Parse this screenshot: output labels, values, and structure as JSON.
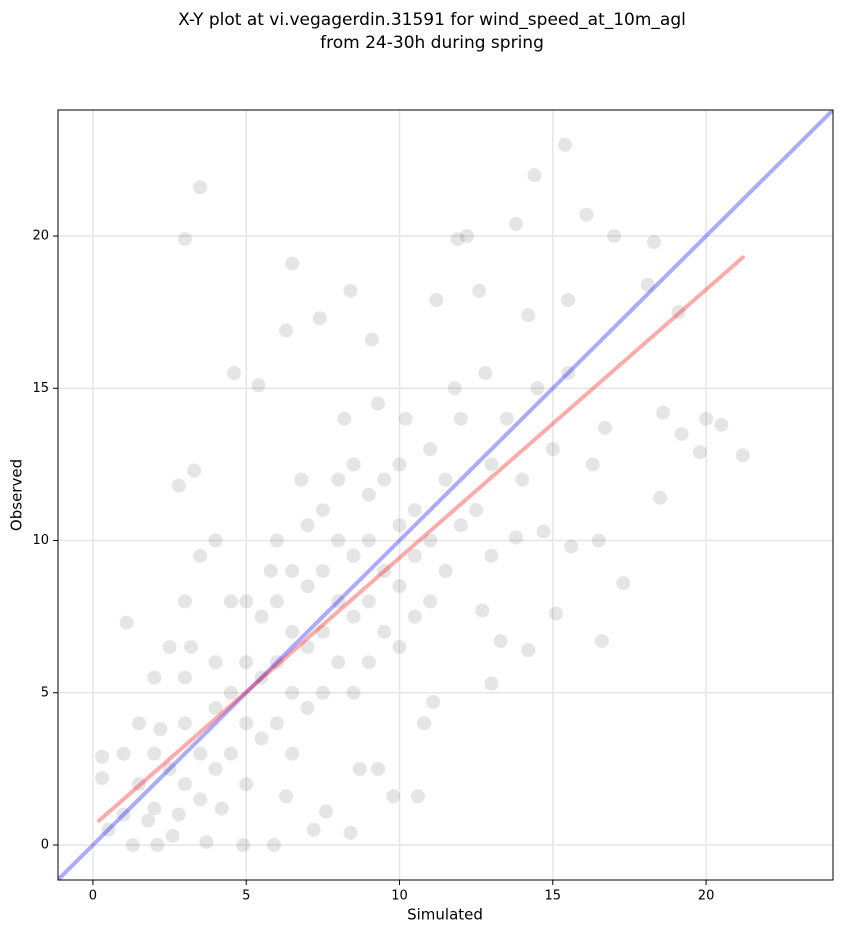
{
  "chart_data": {
    "type": "scatter",
    "title": [
      "X-Y plot at vi.vegagerdin.31591 for wind_speed_at_10m_agl",
      "from 24-30h during spring"
    ],
    "x_label": "Simulated",
    "y_label": "Observed",
    "xlim": [
      -1.14,
      24.14
    ],
    "ylim": [
      -1.15,
      24.14
    ],
    "xticks": [
      0,
      5,
      10,
      15,
      20
    ],
    "yticks": [
      0,
      5,
      10,
      15,
      20
    ],
    "grid": true,
    "color": "#000000",
    "alpha": 0.1,
    "x": [
      3.5,
      3.0,
      15.4,
      14.4,
      21.2,
      17.3,
      16.6,
      12.2,
      6.5,
      8.4,
      13.8,
      16.1,
      18.3,
      20.0,
      19.8,
      18.5,
      15.1,
      13.0,
      9.8,
      10.6,
      8.4,
      5.9,
      4.9,
      2.1,
      0.3,
      0.3,
      1.1,
      2.8,
      3.3,
      4.6,
      5.4,
      6.3,
      7.4,
      9.1,
      11.2,
      11.9,
      12.6,
      14.2,
      15.5,
      17.0,
      18.1,
      19.1,
      20.5,
      19.2,
      18.6,
      16.7,
      16.3,
      16.5,
      15.6,
      14.7,
      13.8,
      13.3,
      14.2,
      12.7,
      11.1,
      10.8,
      9.3,
      8.7,
      7.6,
      7.2,
      6.3,
      3.7,
      2.6,
      1.3,
      1.0,
      1.5,
      2.0,
      2.0,
      2.5,
      3.0,
      3.0,
      3.5,
      3.5,
      4.0,
      4.0,
      4.0,
      4.5,
      4.5,
      5.0,
      5.0,
      5.0,
      5.0,
      5.5,
      5.5,
      5.5,
      6.0,
      6.0,
      6.0,
      6.0,
      6.5,
      6.5,
      6.5,
      6.5,
      7.0,
      7.0,
      7.0,
      7.0,
      7.5,
      7.5,
      7.5,
      7.5,
      8.0,
      8.0,
      8.0,
      8.0,
      8.5,
      8.5,
      8.5,
      8.5,
      9.0,
      9.0,
      9.0,
      9.0,
      9.5,
      9.5,
      9.5,
      10.0,
      10.0,
      10.0,
      10.0,
      10.5,
      10.5,
      10.5,
      11.0,
      11.0,
      11.0,
      11.5,
      11.5,
      12.0,
      12.0,
      12.5,
      13.0,
      13.0,
      13.5,
      14.0,
      14.5,
      15.0,
      15.5,
      1.5,
      2.0,
      2.5,
      3.0,
      3.5,
      4.0,
      4.5,
      3.0,
      1.0,
      0.5,
      1.8,
      2.8,
      4.2,
      3.2,
      5.8,
      6.8,
      8.2,
      9.3,
      10.2,
      11.8,
      12.8,
      2.2
    ],
    "y": [
      21.6,
      19.9,
      23.0,
      22.0,
      12.8,
      8.6,
      6.7,
      20.0,
      19.1,
      18.2,
      20.4,
      20.7,
      19.8,
      14.0,
      12.9,
      11.4,
      7.6,
      5.3,
      1.6,
      1.6,
      0.4,
      0.0,
      0.0,
      0.0,
      2.2,
      2.9,
      7.3,
      11.8,
      12.3,
      15.5,
      15.1,
      16.9,
      17.3,
      16.6,
      17.9,
      19.9,
      18.2,
      17.4,
      17.9,
      20.0,
      18.4,
      17.5,
      13.8,
      13.5,
      14.2,
      13.7,
      12.5,
      10.0,
      9.8,
      10.3,
      10.1,
      6.7,
      6.4,
      7.7,
      4.7,
      4.0,
      2.5,
      2.5,
      1.1,
      0.5,
      1.6,
      0.1,
      0.3,
      0.0,
      1.0,
      2.0,
      1.2,
      3.0,
      2.5,
      2.0,
      4.0,
      1.5,
      3.0,
      2.5,
      4.5,
      6.0,
      3.0,
      5.0,
      2.0,
      4.0,
      6.0,
      8.0,
      3.5,
      5.5,
      7.5,
      4.0,
      6.0,
      8.0,
      10.0,
      3.0,
      5.0,
      7.0,
      9.0,
      4.5,
      6.5,
      8.5,
      10.5,
      5.0,
      7.0,
      9.0,
      11.0,
      6.0,
      8.0,
      10.0,
      12.0,
      5.0,
      7.5,
      9.5,
      12.5,
      6.0,
      8.0,
      10.0,
      11.5,
      7.0,
      9.0,
      12.0,
      6.5,
      8.5,
      10.5,
      12.5,
      7.5,
      9.5,
      11.0,
      8.0,
      10.0,
      13.0,
      9.0,
      12.0,
      10.5,
      14.0,
      11.0,
      12.5,
      9.5,
      14.0,
      12.0,
      15.0,
      13.0,
      15.5,
      4.0,
      5.5,
      6.5,
      8.0,
      9.5,
      10.0,
      8.0,
      5.5,
      3.0,
      0.5,
      0.8,
      1.0,
      1.2,
      6.5,
      9.0,
      12.0,
      14.0,
      14.5,
      14.0,
      15.0,
      15.5,
      3.8
    ],
    "lines": [
      {
        "color": "#0000ff",
        "x": [
          -1.14,
          24.14
        ],
        "y": [
          -1.14,
          24.14
        ]
      },
      {
        "color": "#ff0000",
        "x": [
          0.2,
          21.2
        ],
        "y": [
          0.8,
          19.3
        ]
      }
    ]
  }
}
